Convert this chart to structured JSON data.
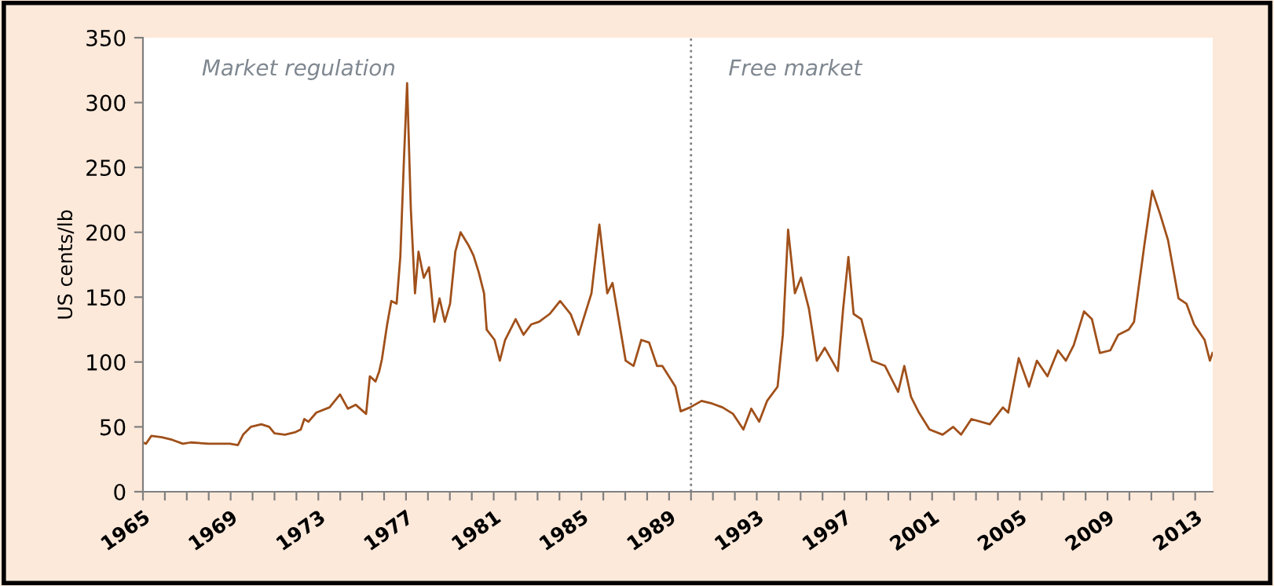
{
  "chart_data": {
    "type": "line",
    "ylabel": "US cents/lb",
    "annotations": [
      "Market regulation",
      "Free market"
    ],
    "x": [
      1965.0,
      1965.14,
      1965.38,
      1965.86,
      1966.34,
      1966.82,
      1967.18,
      1968.01,
      1968.97,
      1969.33,
      1969.57,
      1969.92,
      1970.4,
      1970.76,
      1971.0,
      1971.48,
      1971.96,
      1972.2,
      1972.36,
      1972.55,
      1972.91,
      1973.51,
      1973.99,
      1974.35,
      1974.71,
      1975.18,
      1975.35,
      1975.61,
      1975.78,
      1975.9,
      1976.14,
      1976.33,
      1976.57,
      1976.74,
      1976.91,
      1977.05,
      1977.22,
      1977.41,
      1977.57,
      1977.81,
      1978.05,
      1978.29,
      1978.53,
      1978.77,
      1979.01,
      1979.25,
      1979.49,
      1979.85,
      1980.08,
      1980.32,
      1980.56,
      1980.68,
      1981.04,
      1981.28,
      1981.52,
      1981.76,
      1982.0,
      1982.36,
      1982.71,
      1983.07,
      1983.55,
      1984.03,
      1984.51,
      1984.87,
      1985.46,
      1985.82,
      1986.18,
      1986.42,
      1986.66,
      1987.02,
      1987.38,
      1987.73,
      1988.09,
      1988.45,
      1988.69,
      1989.29,
      1989.53,
      1989.96,
      1990.48,
      1990.96,
      1991.44,
      1991.92,
      1992.39,
      1992.75,
      1993.11,
      1993.47,
      1993.95,
      1994.19,
      1994.43,
      1994.74,
      1995.02,
      1995.38,
      1995.74,
      1996.1,
      1996.7,
      1996.94,
      1997.18,
      1997.42,
      1997.77,
      1998.25,
      1998.85,
      1999.45,
      1999.73,
      2000.04,
      2000.4,
      2000.88,
      2001.48,
      2001.96,
      2002.32,
      2002.79,
      2003.63,
      2004.23,
      2004.47,
      2004.95,
      2005.42,
      2005.78,
      2006.26,
      2006.74,
      2007.1,
      2007.46,
      2007.93,
      2008.29,
      2008.65,
      2009.13,
      2009.49,
      2009.97,
      2010.21,
      2010.68,
      2011.04,
      2011.4,
      2011.76,
      2012.24,
      2012.6,
      2012.95,
      2013.43,
      2013.67,
      2013.79
    ],
    "series": [
      {
        "color": "#a0501a",
        "values": [
          38,
          37,
          43,
          42,
          40,
          37,
          38,
          37,
          37,
          36,
          44,
          50,
          52,
          50,
          45,
          44,
          46,
          48,
          56,
          54,
          61,
          65,
          75,
          64,
          67,
          60,
          89,
          85,
          93,
          102,
          129,
          147,
          145,
          181,
          258,
          315,
          218,
          153,
          185,
          165,
          173,
          131,
          149,
          131,
          145,
          185,
          200,
          190,
          182,
          169,
          153,
          125,
          117,
          101,
          117,
          125,
          133,
          121,
          129,
          131,
          137,
          147,
          137,
          121,
          153,
          206,
          153,
          161,
          137,
          101,
          97,
          117,
          115,
          97,
          97,
          81,
          62,
          65,
          70,
          68,
          65,
          60,
          48,
          64,
          54,
          70,
          81,
          121,
          202,
          153,
          165,
          141,
          101,
          111,
          93,
          141,
          181,
          137,
          133,
          101,
          97,
          77,
          97,
          73,
          61,
          48,
          44,
          50,
          44,
          56,
          52,
          65,
          61,
          103,
          81,
          101,
          89,
          109,
          101,
          113,
          139,
          133,
          107,
          109,
          121,
          125,
          131,
          190,
          232,
          214,
          194,
          149,
          145,
          129,
          117,
          101,
          107
        ]
      }
    ],
    "xlim": [
      1965,
      2013.8
    ],
    "xticks": [
      1965,
      {
        "value": 1966,
        "label": null
      },
      {
        "value": 1967,
        "label": null
      },
      {
        "value": 1968,
        "label": null
      },
      1969,
      {
        "value": 1970,
        "label": null
      },
      {
        "value": 1971,
        "label": null
      },
      {
        "value": 1972,
        "label": null
      },
      1973,
      {
        "value": 1974,
        "label": null
      },
      {
        "value": 1975,
        "label": null
      },
      {
        "value": 1976,
        "label": null
      },
      1977,
      {
        "value": 1978,
        "label": null
      },
      {
        "value": 1979,
        "label": null
      },
      {
        "value": 1980,
        "label": null
      },
      1981,
      {
        "value": 1982,
        "label": null
      },
      {
        "value": 1983,
        "label": null
      },
      {
        "value": 1984,
        "label": null
      },
      1985,
      {
        "value": 1986,
        "label": null
      },
      {
        "value": 1987,
        "label": null
      },
      {
        "value": 1988,
        "label": null
      },
      1989,
      {
        "value": 1990,
        "label": null
      },
      {
        "value": 1991,
        "label": null
      },
      {
        "value": 1992,
        "label": null
      },
      1993,
      {
        "value": 1994,
        "label": null
      },
      {
        "value": 1995,
        "label": null
      },
      {
        "value": 1996,
        "label": null
      },
      1997,
      {
        "value": 1998,
        "label": null
      },
      {
        "value": 1999,
        "label": null
      },
      {
        "value": 2000,
        "label": null
      },
      2001,
      {
        "value": 2002,
        "label": null
      },
      {
        "value": 2003,
        "label": null
      },
      {
        "value": 2004,
        "label": null
      },
      2005,
      {
        "value": 2006,
        "label": null
      },
      {
        "value": 2007,
        "label": null
      },
      {
        "value": 2008,
        "label": null
      },
      2009,
      {
        "value": 2010,
        "label": null
      },
      {
        "value": 2011,
        "label": null
      },
      {
        "value": 2012,
        "label": null
      },
      2013
    ],
    "ylim": [
      0,
      350
    ],
    "yticks": [
      0,
      50,
      100,
      150,
      200,
      250,
      300,
      350
    ],
    "ref_lines": [
      {
        "axis": "x",
        "value": 1990,
        "color": "#808080",
        "line_style": "dotted"
      }
    ],
    "grid": false,
    "legend": false,
    "marker": "none",
    "line_style": "solid"
  }
}
